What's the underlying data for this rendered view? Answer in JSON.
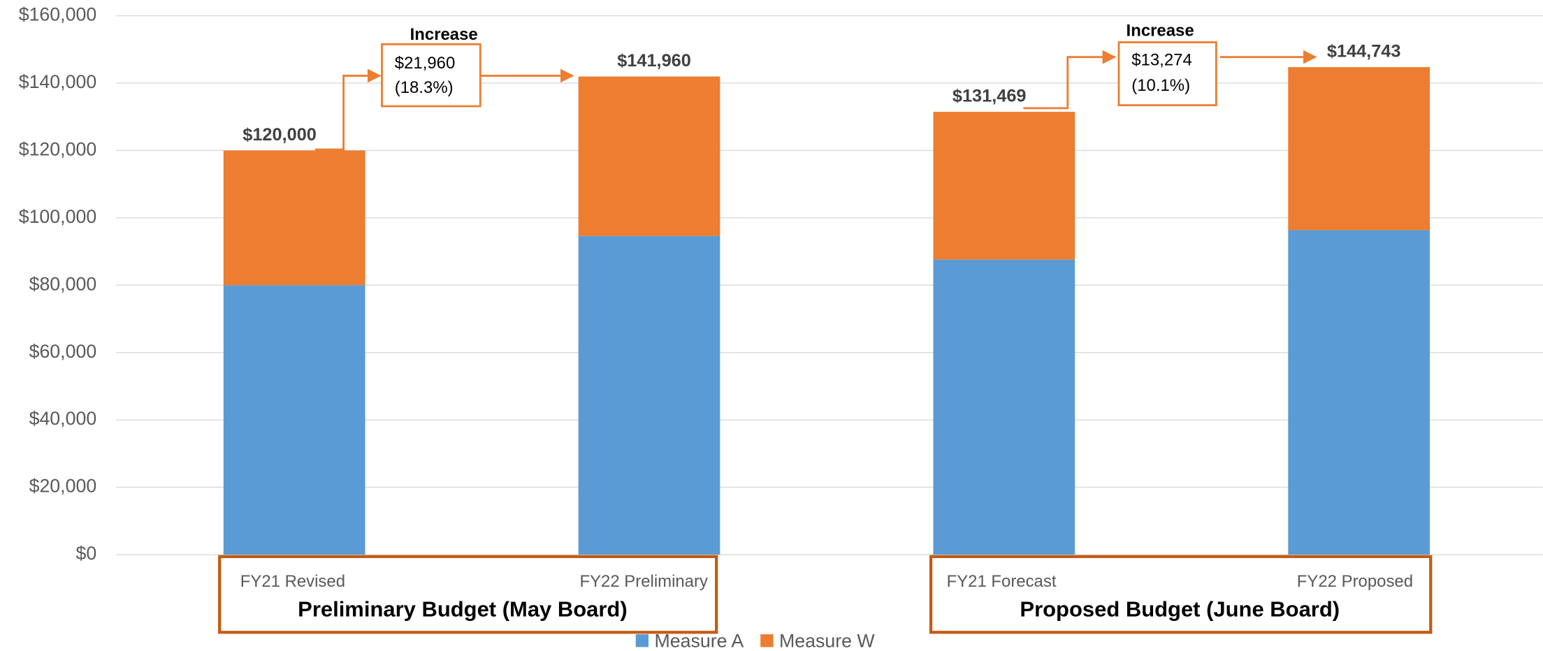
{
  "chart_data": {
    "type": "bar",
    "stacked": true,
    "categories": [
      "FY21 Revised",
      "FY22 Preliminary",
      "FY21 Forecast",
      "FY22 Proposed"
    ],
    "series": [
      {
        "name": "Measure A",
        "color": "#5b9bd5",
        "values": [
          80000,
          94600,
          87600,
          96350
        ]
      },
      {
        "name": "Measure W",
        "color": "#ed7d31",
        "values": [
          40000,
          47360,
          43869,
          48393
        ]
      }
    ],
    "totals": [
      120000,
      141960,
      131469,
      144743
    ],
    "total_labels": [
      "$120,000",
      "$141,960",
      "$131,469",
      "$144,743"
    ],
    "ylim": [
      0,
      160000
    ],
    "yticks": [
      {
        "value": 0,
        "label": "$0"
      },
      {
        "value": 20000,
        "label": "$20,000"
      },
      {
        "value": 40000,
        "label": "$40,000"
      },
      {
        "value": 60000,
        "label": "$60,000"
      },
      {
        "value": 80000,
        "label": "$80,000"
      },
      {
        "value": 100000,
        "label": "$100,000"
      },
      {
        "value": 120000,
        "label": "$120,000"
      },
      {
        "value": 140000,
        "label": "$140,000"
      },
      {
        "value": 160000,
        "label": "$160,000"
      }
    ],
    "grid": true,
    "legend": "bottom",
    "annotations": [
      {
        "title": "Increase",
        "amount": "$21,960",
        "percent": "(18.3%)"
      },
      {
        "title": "Increase",
        "amount": "$13,274",
        "percent": "(10.1%)"
      }
    ],
    "groups": [
      "Preliminary Budget (May Board)",
      "Proposed Budget (June Board)"
    ]
  }
}
